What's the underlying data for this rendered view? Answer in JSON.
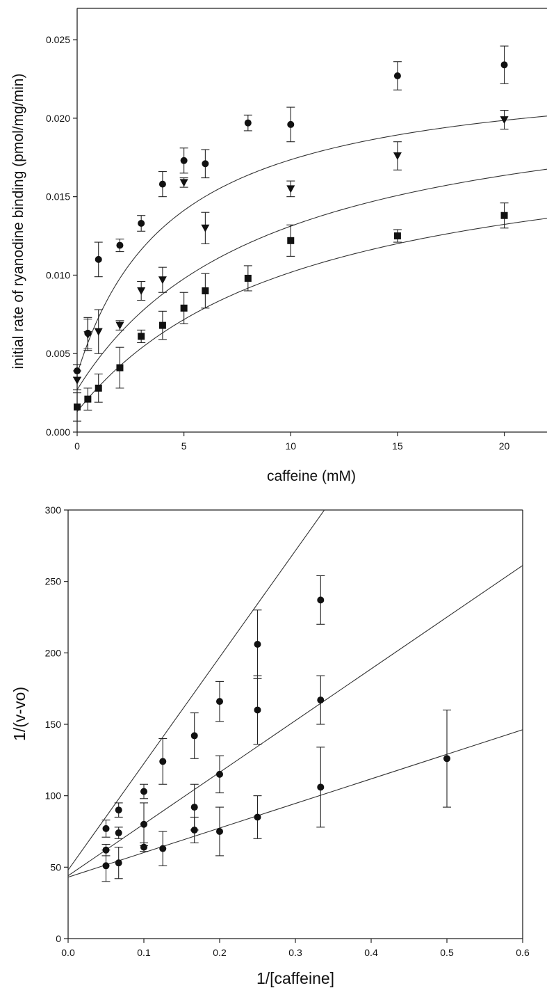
{
  "chart_data": [
    {
      "type": "scatter",
      "title": "",
      "xlabel": "caffeine (mM)",
      "ylabel": "initial rate of ryanodine binding (pmol/mg/min)",
      "xlim": [
        0,
        22
      ],
      "ylim": [
        0,
        0.027
      ],
      "xticks": [
        0,
        5,
        10,
        15,
        20
      ],
      "xtick_labels": [
        "0",
        "5",
        "10",
        "15",
        "20"
      ],
      "yticks": [
        0,
        0.005,
        0.01,
        0.015,
        0.02,
        0.025
      ],
      "ytick_labels": [
        "0.000",
        "0.005",
        "0.010",
        "0.015",
        "0.020",
        "0.025"
      ],
      "grid": false,
      "series": [
        {
          "marker": "circle",
          "points": [
            {
              "x": 0,
              "y": 0.0039,
              "err": 0.0004
            },
            {
              "x": 0.5,
              "y": 0.0063,
              "err": 0.001
            },
            {
              "x": 1,
              "y": 0.011,
              "err": 0.0011
            },
            {
              "x": 2,
              "y": 0.0119,
              "err": 0.0004
            },
            {
              "x": 3,
              "y": 0.0133,
              "err": 0.0005
            },
            {
              "x": 4,
              "y": 0.0158,
              "err": 0.0008
            },
            {
              "x": 5,
              "y": 0.0173,
              "err": 0.0008
            },
            {
              "x": 6,
              "y": 0.0171,
              "err": 0.0009
            },
            {
              "x": 8,
              "y": 0.0197,
              "err": 0.0005
            },
            {
              "x": 10,
              "y": 0.0196,
              "err": 0.0011
            },
            {
              "x": 15,
              "y": 0.0227,
              "err": 0.0009
            },
            {
              "x": 20,
              "y": 0.0234,
              "err": 0.0012
            }
          ],
          "fit": {
            "v0": 0.0037,
            "vmax": 0.0235,
            "km": 4.5
          }
        },
        {
          "marker": "triangle-down",
          "points": [
            {
              "x": 0,
              "y": 0.0033,
              "err": 0.0006
            },
            {
              "x": 0.5,
              "y": 0.0062,
              "err": 0.001
            },
            {
              "x": 1,
              "y": 0.0064,
              "err": 0.0014
            },
            {
              "x": 2,
              "y": 0.0068,
              "err": 0.0003
            },
            {
              "x": 3,
              "y": 0.009,
              "err": 0.0006
            },
            {
              "x": 4,
              "y": 0.0097,
              "err": 0.0008
            },
            {
              "x": 5,
              "y": 0.0159,
              "err": 0.0003
            },
            {
              "x": 6,
              "y": 0.013,
              "err": 0.001
            },
            {
              "x": 10,
              "y": 0.0155,
              "err": 0.0005
            },
            {
              "x": 15,
              "y": 0.0176,
              "err": 0.0009
            },
            {
              "x": 20,
              "y": 0.0199,
              "err": 0.0006
            }
          ],
          "fit": {
            "v0": 0.0027,
            "vmax": 0.0225,
            "km": 9.0
          }
        },
        {
          "marker": "square",
          "points": [
            {
              "x": 0,
              "y": 0.0016,
              "err": 0.0009
            },
            {
              "x": 0.5,
              "y": 0.0021,
              "err": 0.0007
            },
            {
              "x": 1,
              "y": 0.0028,
              "err": 0.0009
            },
            {
              "x": 2,
              "y": 0.0041,
              "err": 0.0013
            },
            {
              "x": 3,
              "y": 0.0061,
              "err": 0.0004
            },
            {
              "x": 4,
              "y": 0.0068,
              "err": 0.0009
            },
            {
              "x": 5,
              "y": 0.0079,
              "err": 0.001
            },
            {
              "x": 6,
              "y": 0.009,
              "err": 0.0011
            },
            {
              "x": 8,
              "y": 0.0098,
              "err": 0.0008
            },
            {
              "x": 10,
              "y": 0.0122,
              "err": 0.001
            },
            {
              "x": 15,
              "y": 0.0125,
              "err": 0.0004
            },
            {
              "x": 20,
              "y": 0.0138,
              "err": 0.0008
            }
          ],
          "fit": {
            "v0": 0.0013,
            "vmax": 0.0195,
            "km": 10.5
          }
        }
      ]
    },
    {
      "type": "scatter",
      "title": "",
      "xlabel": "1/[caffeine]",
      "ylabel": "1/(v-vo)",
      "xlim": [
        0,
        0.6
      ],
      "ylim": [
        0,
        300
      ],
      "xticks": [
        0,
        0.1,
        0.2,
        0.3,
        0.4,
        0.5,
        0.6
      ],
      "xtick_labels": [
        "0.0",
        "0.1",
        "0.2",
        "0.3",
        "0.4",
        "0.5",
        "0.6"
      ],
      "yticks": [
        0,
        50,
        100,
        150,
        200,
        250,
        300
      ],
      "ytick_labels": [
        "0",
        "50",
        "100",
        "150",
        "200",
        "250",
        "300"
      ],
      "grid": false,
      "series": [
        {
          "marker": "circle",
          "points": [
            {
              "x": 0.05,
              "y": 77,
              "err": 6
            },
            {
              "x": 0.0667,
              "y": 90,
              "err": 5
            },
            {
              "x": 0.1,
              "y": 103,
              "err": 5
            },
            {
              "x": 0.125,
              "y": 124,
              "err": 16
            },
            {
              "x": 0.1667,
              "y": 142,
              "err": 16
            },
            {
              "x": 0.2,
              "y": 166,
              "err": 14
            },
            {
              "x": 0.25,
              "y": 206,
              "err": 24
            },
            {
              "x": 0.3333,
              "y": 237,
              "err": 17
            }
          ],
          "fit": {
            "intercept": 48,
            "slope": 745
          }
        },
        {
          "marker": "circle",
          "points": [
            {
              "x": 0.05,
              "y": 62,
              "err": 4
            },
            {
              "x": 0.0667,
              "y": 74,
              "err": 4
            },
            {
              "x": 0.1,
              "y": 80,
              "err": 15
            },
            {
              "x": 0.1667,
              "y": 92,
              "err": 16
            },
            {
              "x": 0.2,
              "y": 115,
              "err": 13
            },
            {
              "x": 0.25,
              "y": 160,
              "err": 24
            },
            {
              "x": 0.3333,
              "y": 167,
              "err": 17
            }
          ],
          "fit": {
            "intercept": 44,
            "slope": 362
          }
        },
        {
          "marker": "circle",
          "points": [
            {
              "x": 0.05,
              "y": 51,
              "err": 11
            },
            {
              "x": 0.0667,
              "y": 53,
              "err": 11
            },
            {
              "x": 0.1,
              "y": 64,
              "err": 3
            },
            {
              "x": 0.125,
              "y": 63,
              "err": 12
            },
            {
              "x": 0.1667,
              "y": 76,
              "err": 9
            },
            {
              "x": 0.2,
              "y": 75,
              "err": 17
            },
            {
              "x": 0.25,
              "y": 85,
              "err": 15
            },
            {
              "x": 0.3333,
              "y": 106,
              "err": 28
            },
            {
              "x": 0.5,
              "y": 126,
              "err": 34
            }
          ],
          "fit": {
            "intercept": 43,
            "slope": 172
          }
        }
      ]
    }
  ]
}
